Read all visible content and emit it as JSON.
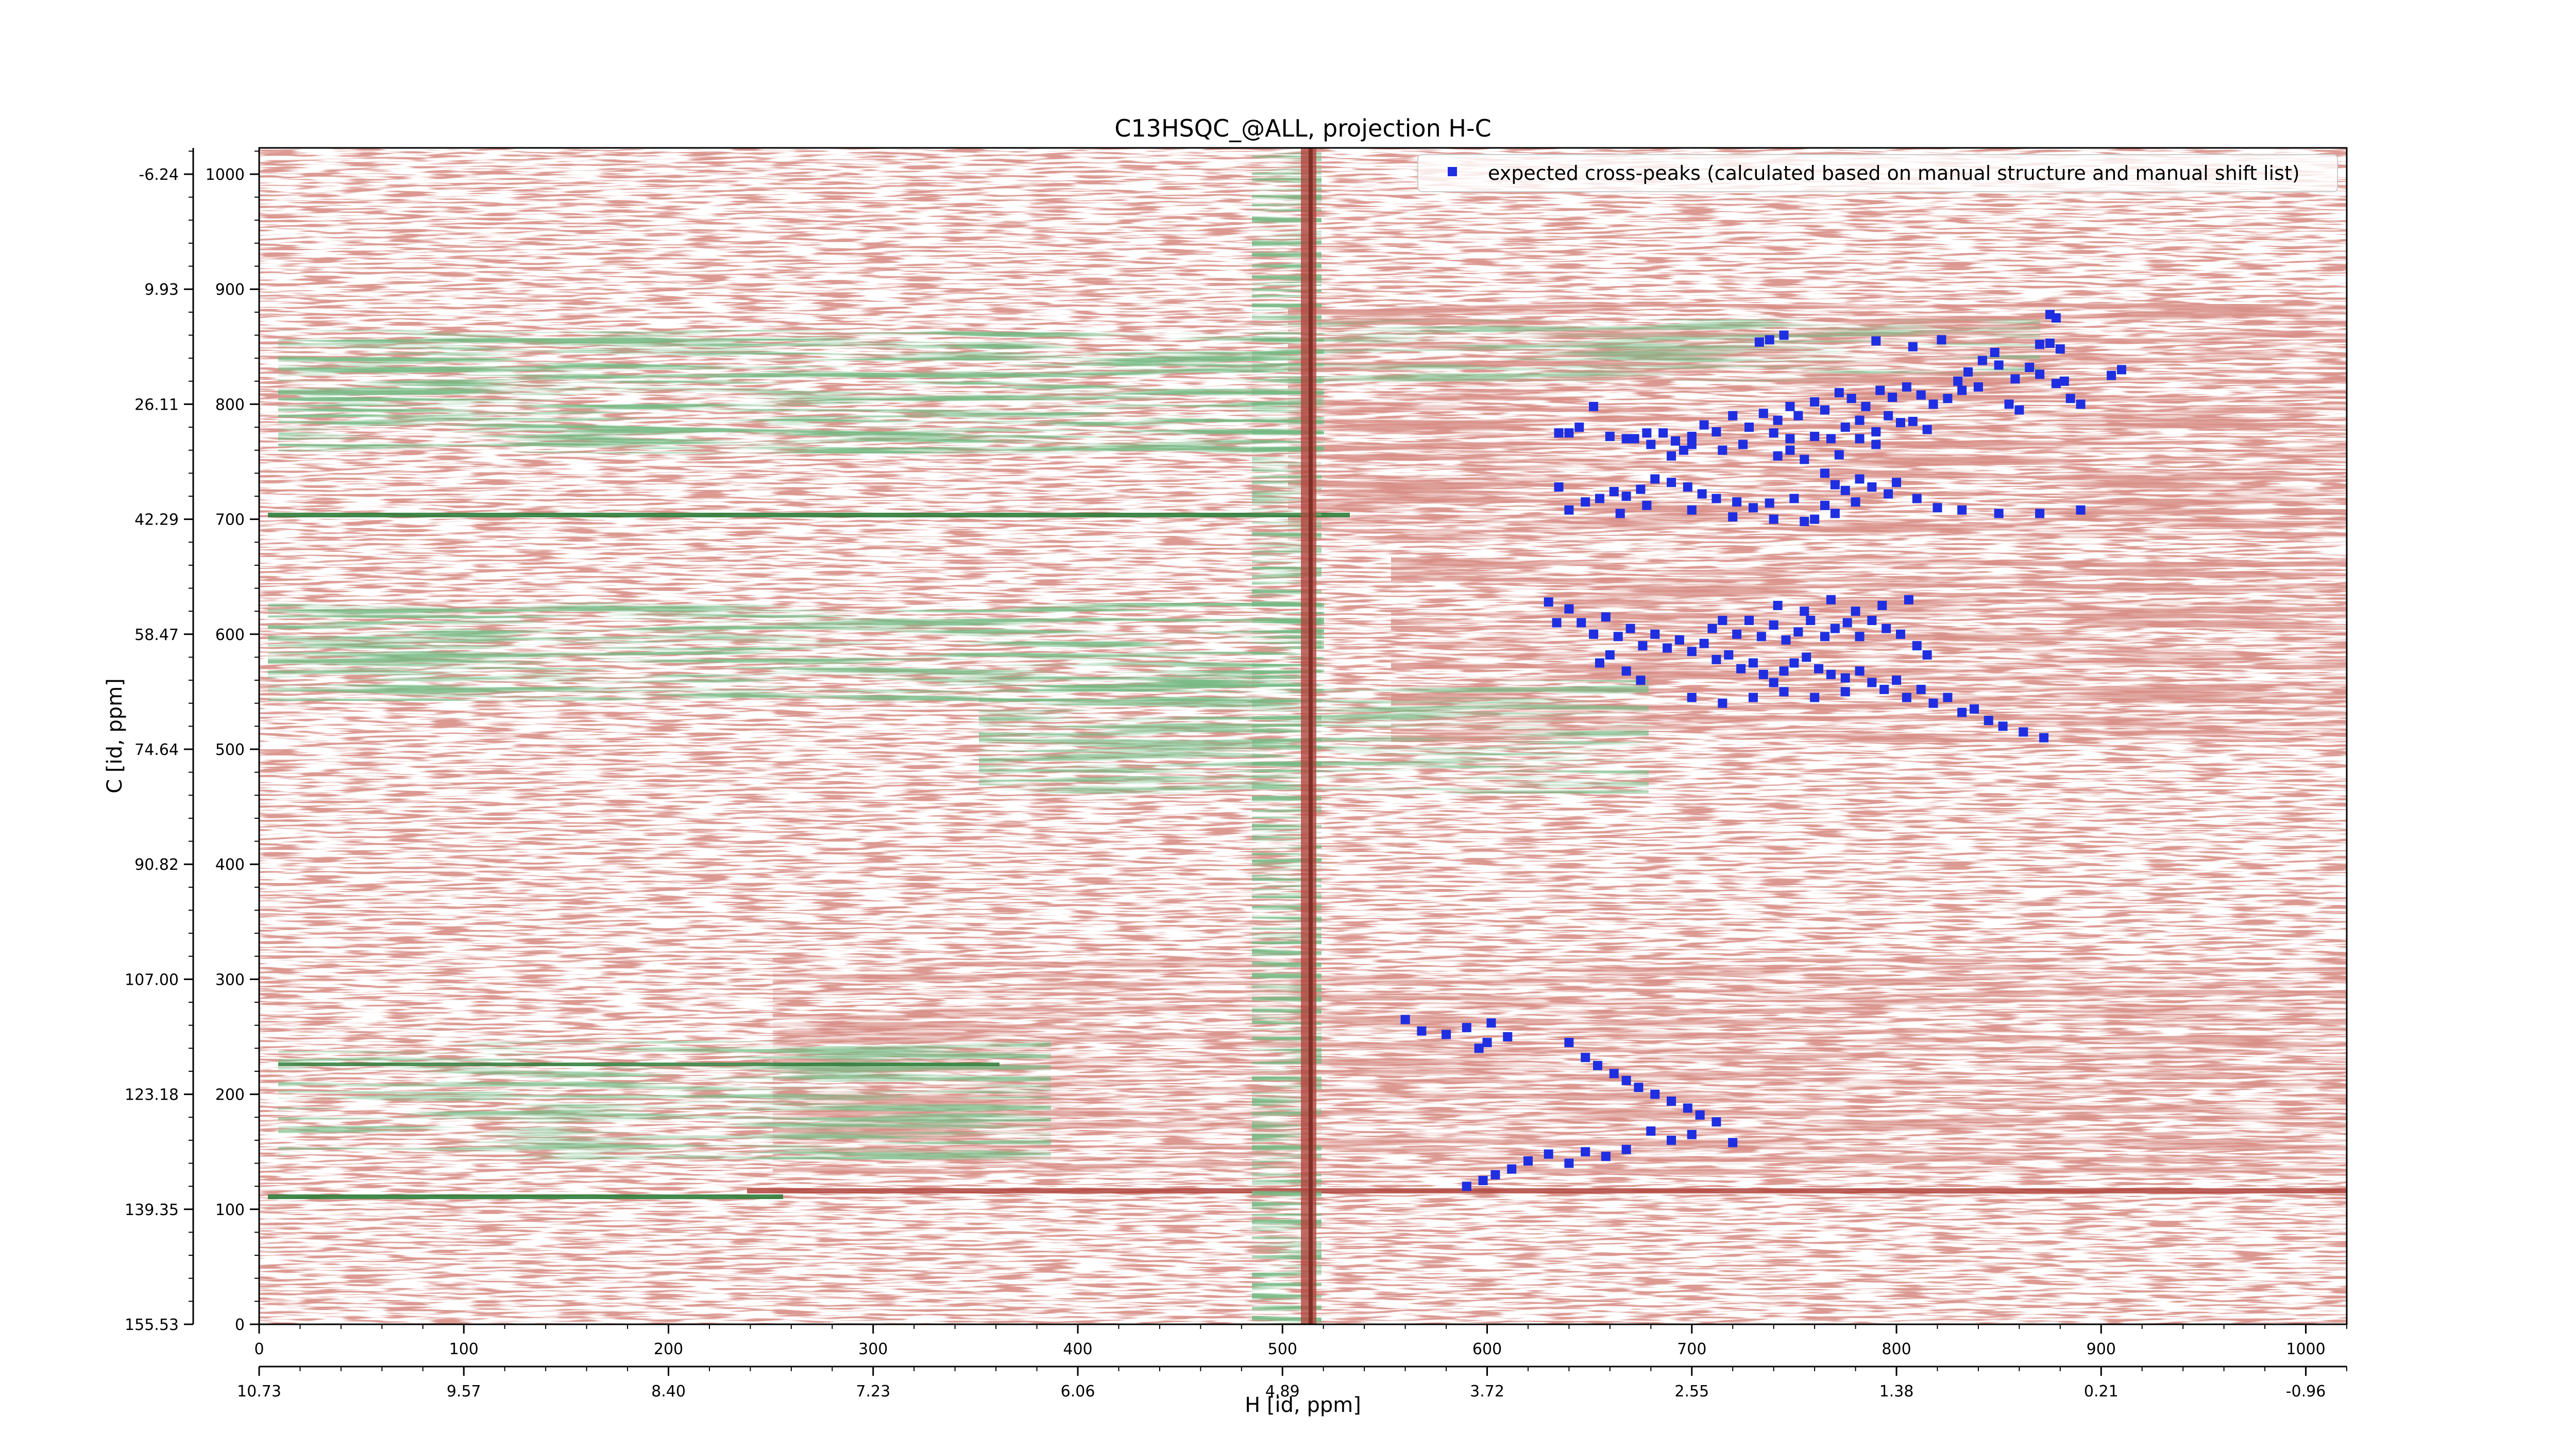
{
  "chart_data": {
    "type": "scatter",
    "title": "C13HSQC_@ALL, projection H-C",
    "xlabel": "H [id, ppm]",
    "ylabel": "C [id, ppm]",
    "x_index_range": [
      0,
      1024
    ],
    "y_index_range": [
      0,
      1024
    ],
    "x_index_ticks": [
      "0",
      "100",
      "200",
      "300",
      "400",
      "500",
      "600",
      "700",
      "800",
      "900",
      "1000"
    ],
    "x_ppm_ticks": [
      "10.73",
      "9.57",
      "8.40",
      "7.23",
      "6.06",
      "4.89",
      "3.72",
      "2.55",
      "1.38",
      "0.21",
      "-0.96"
    ],
    "y_index_ticks": [
      "0",
      "100",
      "200",
      "300",
      "400",
      "500",
      "600",
      "700",
      "800",
      "900",
      "1000"
    ],
    "y_ppm_ticks": [
      "155.53",
      "139.35",
      "123.18",
      "107.00",
      "90.82",
      "74.64",
      "58.47",
      "42.29",
      "26.11",
      "9.93",
      "-6.24"
    ],
    "legend": {
      "label": "expected cross-peaks (calculated based on manual structure and manual shift list)",
      "placement": "top-right"
    },
    "grid": false,
    "colors": {
      "positive_contours": "#2e7d3a",
      "negative_contours": "#b0453d",
      "peaks": "#1f2ee0"
    },
    "series": [
      {
        "name": "expected cross-peaks (calculated based on manual structure and manual shift list)",
        "points": [
          [
            733,
            854
          ],
          [
            738,
            856
          ],
          [
            745,
            860
          ],
          [
            790,
            855
          ],
          [
            808,
            850
          ],
          [
            822,
            856
          ],
          [
            870,
            852
          ],
          [
            875,
            853
          ],
          [
            880,
            848
          ],
          [
            875,
            878
          ],
          [
            878,
            875
          ],
          [
            842,
            838
          ],
          [
            848,
            845
          ],
          [
            835,
            828
          ],
          [
            850,
            834
          ],
          [
            858,
            822
          ],
          [
            865,
            832
          ],
          [
            870,
            826
          ],
          [
            878,
            818
          ],
          [
            882,
            820
          ],
          [
            830,
            820
          ],
          [
            832,
            812
          ],
          [
            840,
            815
          ],
          [
            825,
            805
          ],
          [
            818,
            800
          ],
          [
            812,
            808
          ],
          [
            805,
            815
          ],
          [
            798,
            806
          ],
          [
            792,
            812
          ],
          [
            785,
            798
          ],
          [
            778,
            805
          ],
          [
            772,
            810
          ],
          [
            765,
            795
          ],
          [
            760,
            802
          ],
          [
            752,
            790
          ],
          [
            748,
            798
          ],
          [
            742,
            786
          ],
          [
            735,
            792
          ],
          [
            728,
            780
          ],
          [
            720,
            790
          ],
          [
            712,
            776
          ],
          [
            706,
            782
          ],
          [
            700,
            772
          ],
          [
            692,
            768
          ],
          [
            686,
            775
          ],
          [
            680,
            765
          ],
          [
            775,
            780
          ],
          [
            782,
            786
          ],
          [
            790,
            776
          ],
          [
            796,
            790
          ],
          [
            802,
            784
          ],
          [
            768,
            770
          ],
          [
            760,
            772
          ],
          [
            748,
            770
          ],
          [
            740,
            775
          ],
          [
            910,
            830
          ],
          [
            905,
            825
          ],
          [
            890,
            800
          ],
          [
            885,
            805
          ],
          [
            860,
            795
          ],
          [
            855,
            800
          ],
          [
            815,
            778
          ],
          [
            808,
            785
          ],
          [
            790,
            765
          ],
          [
            782,
            770
          ],
          [
            772,
            756
          ],
          [
            652,
            798
          ],
          [
            645,
            780
          ],
          [
            640,
            775
          ],
          [
            635,
            775
          ],
          [
            660,
            772
          ],
          [
            668,
            770
          ],
          [
            672,
            770
          ],
          [
            678,
            775
          ],
          [
            690,
            755
          ],
          [
            696,
            760
          ],
          [
            700,
            765
          ],
          [
            715,
            760
          ],
          [
            725,
            765
          ],
          [
            742,
            755
          ],
          [
            748,
            760
          ],
          [
            755,
            752
          ],
          [
            765,
            740
          ],
          [
            770,
            730
          ],
          [
            775,
            725
          ],
          [
            782,
            735
          ],
          [
            788,
            728
          ],
          [
            796,
            722
          ],
          [
            800,
            732
          ],
          [
            810,
            718
          ],
          [
            820,
            710
          ],
          [
            832,
            708
          ],
          [
            850,
            705
          ],
          [
            870,
            705
          ],
          [
            890,
            708
          ],
          [
            770,
            705
          ],
          [
            760,
            700
          ],
          [
            750,
            718
          ],
          [
            738,
            714
          ],
          [
            730,
            710
          ],
          [
            722,
            715
          ],
          [
            712,
            718
          ],
          [
            705,
            722
          ],
          [
            698,
            728
          ],
          [
            690,
            732
          ],
          [
            682,
            735
          ],
          [
            675,
            726
          ],
          [
            668,
            720
          ],
          [
            662,
            724
          ],
          [
            655,
            718
          ],
          [
            648,
            715
          ],
          [
            640,
            708
          ],
          [
            635,
            728
          ],
          [
            665,
            705
          ],
          [
            678,
            712
          ],
          [
            700,
            708
          ],
          [
            720,
            702
          ],
          [
            740,
            700
          ],
          [
            755,
            698
          ],
          [
            765,
            712
          ],
          [
            780,
            715
          ],
          [
            630,
            628
          ],
          [
            634,
            610
          ],
          [
            640,
            622
          ],
          [
            646,
            610
          ],
          [
            652,
            600
          ],
          [
            658,
            615
          ],
          [
            664,
            598
          ],
          [
            670,
            605
          ],
          [
            676,
            590
          ],
          [
            682,
            600
          ],
          [
            688,
            588
          ],
          [
            694,
            595
          ],
          [
            700,
            585
          ],
          [
            706,
            592
          ],
          [
            712,
            578
          ],
          [
            718,
            582
          ],
          [
            724,
            570
          ],
          [
            730,
            575
          ],
          [
            735,
            565
          ],
          [
            740,
            558
          ],
          [
            745,
            568
          ],
          [
            750,
            575
          ],
          [
            756,
            580
          ],
          [
            762,
            570
          ],
          [
            768,
            565
          ],
          [
            775,
            562
          ],
          [
            782,
            568
          ],
          [
            788,
            558
          ],
          [
            794,
            552
          ],
          [
            800,
            560
          ],
          [
            805,
            545
          ],
          [
            812,
            552
          ],
          [
            818,
            540
          ],
          [
            825,
            545
          ],
          [
            832,
            532
          ],
          [
            838,
            535
          ],
          [
            845,
            525
          ],
          [
            852,
            520
          ],
          [
            862,
            515
          ],
          [
            872,
            510
          ],
          [
            710,
            605
          ],
          [
            715,
            612
          ],
          [
            722,
            600
          ],
          [
            728,
            612
          ],
          [
            734,
            598
          ],
          [
            740,
            608
          ],
          [
            746,
            595
          ],
          [
            752,
            602
          ],
          [
            758,
            612
          ],
          [
            765,
            598
          ],
          [
            770,
            605
          ],
          [
            776,
            610
          ],
          [
            782,
            598
          ],
          [
            788,
            612
          ],
          [
            795,
            605
          ],
          [
            802,
            600
          ],
          [
            810,
            590
          ],
          [
            815,
            582
          ],
          [
            655,
            575
          ],
          [
            660,
            582
          ],
          [
            668,
            568
          ],
          [
            675,
            560
          ],
          [
            742,
            625
          ],
          [
            755,
            620
          ],
          [
            768,
            630
          ],
          [
            780,
            620
          ],
          [
            793,
            625
          ],
          [
            806,
            630
          ],
          [
            700,
            545
          ],
          [
            715,
            540
          ],
          [
            730,
            545
          ],
          [
            745,
            550
          ],
          [
            760,
            545
          ],
          [
            775,
            550
          ],
          [
            560,
            265
          ],
          [
            568,
            255
          ],
          [
            580,
            252
          ],
          [
            590,
            258
          ],
          [
            600,
            245
          ],
          [
            610,
            250
          ],
          [
            596,
            240
          ],
          [
            602,
            262
          ],
          [
            640,
            245
          ],
          [
            648,
            232
          ],
          [
            654,
            225
          ],
          [
            662,
            218
          ],
          [
            668,
            212
          ],
          [
            674,
            206
          ],
          [
            682,
            200
          ],
          [
            690,
            194
          ],
          [
            698,
            188
          ],
          [
            704,
            182
          ],
          [
            712,
            176
          ],
          [
            700,
            165
          ],
          [
            690,
            160
          ],
          [
            680,
            168
          ],
          [
            668,
            152
          ],
          [
            658,
            146
          ],
          [
            648,
            150
          ],
          [
            640,
            140
          ],
          [
            630,
            148
          ],
          [
            620,
            142
          ],
          [
            612,
            135
          ],
          [
            604,
            130
          ],
          [
            598,
            125
          ],
          [
            590,
            120
          ],
          [
            720,
            158
          ]
        ]
      }
    ]
  }
}
